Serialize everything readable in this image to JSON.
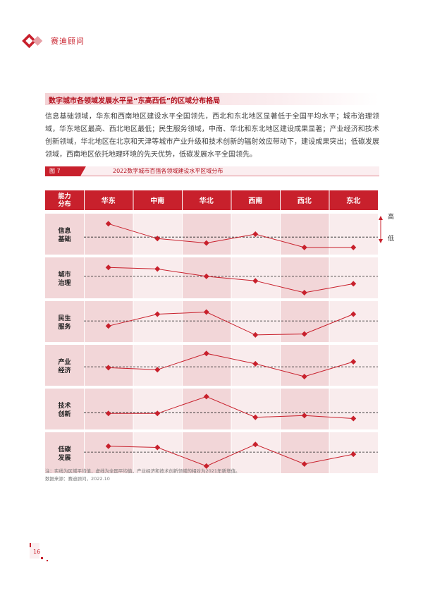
{
  "header": {
    "brand_name": "赛迪顾问",
    "logo_icon": "diamond-logo-icon",
    "accent_color": "#c8202c"
  },
  "section": {
    "title": "数字城市各领域发展水平呈“东高西低”的区域分布格局",
    "paragraph": "信息基础领域，华东和西南地区建设水平全国领先，西北和东北地区显著低于全国平均水平；城市治理领域，华东地区最高、西北地区最低；民生服务领域，中南、华北和东北地区建设成果显著；产业经济和技术创新领域，华北地区在北京和天津等城市产业升级和技术创新的辐射效应带动下，建设成果突出；低碳发展领域，西南地区依托地理环境的先天优势，低碳发展水平全国领先。"
  },
  "figure": {
    "label": "图 7",
    "title": "2022数字城市百强各领域建设水平区域分布"
  },
  "legend": {
    "high": "高",
    "low": "低"
  },
  "chart_data": {
    "type": "line",
    "corner_header": [
      "能力",
      "分布"
    ],
    "regions": [
      "华东",
      "中南",
      "华北",
      "西南",
      "西北",
      "东北"
    ],
    "series": [
      {
        "name": "信息基础",
        "name_lines": [
          "信息",
          "基础"
        ],
        "values": [
          0.85,
          0.35,
          0.2,
          0.5,
          0.05,
          0.05
        ],
        "average": 0.4
      },
      {
        "name": "城市治理",
        "name_lines": [
          "城市",
          "治理"
        ],
        "values": [
          0.85,
          0.8,
          0.55,
          0.4,
          0.0,
          0.3
        ],
        "average": 0.55
      },
      {
        "name": "民生服务",
        "name_lines": [
          "民生",
          "服务"
        ],
        "values": [
          0.35,
          0.75,
          0.82,
          0.05,
          0.08,
          0.75
        ],
        "average": 0.52
      },
      {
        "name": "产业经济",
        "name_lines": [
          "产业",
          "经济"
        ],
        "values": [
          0.42,
          0.35,
          0.9,
          0.55,
          0.12,
          0.62
        ],
        "average": 0.45
      },
      {
        "name": "技术创新",
        "name_lines": [
          "技术",
          "创新"
        ],
        "values": [
          0.35,
          0.35,
          0.92,
          0.22,
          0.28,
          0.18
        ],
        "average": 0.38
      },
      {
        "name": "低碳发展",
        "name_lines": [
          "低碳",
          "发展"
        ],
        "values": [
          0.72,
          0.68,
          0.05,
          0.78,
          0.12,
          0.45
        ],
        "average": 0.52
      }
    ],
    "colors": {
      "line": "#c8202c",
      "header": "#c8202c",
      "row_dark": "#f2d6d8",
      "row_light": "#f9eced"
    }
  },
  "notes": {
    "note": "注：实线为区域平均值，虚线为全国平均值，产业经济和技术创新领域的相对为2021年新增值。",
    "source": "数据来源：赛迪顾问，2022.10"
  },
  "footer": {
    "page_number": "16"
  }
}
